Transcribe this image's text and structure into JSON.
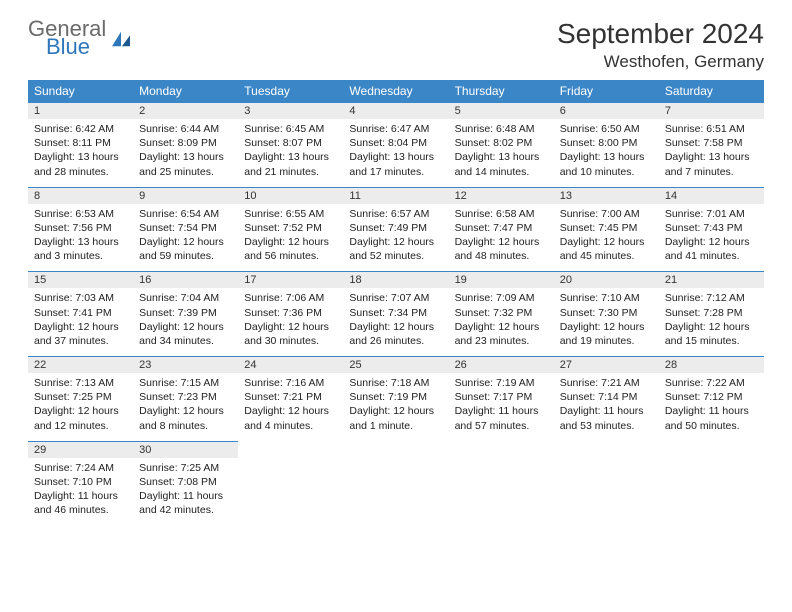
{
  "brand": {
    "part1": "General",
    "part2": "Blue"
  },
  "title": "September 2024",
  "location": "Westhofen, Germany",
  "colors": {
    "header_bg": "#3b86c7",
    "header_fg": "#ffffff",
    "daynum_bg": "#ececec",
    "row_border": "#3b86c7",
    "logo_gray": "#6a6a6a",
    "logo_blue": "#2f77bb"
  },
  "day_headers": [
    "Sunday",
    "Monday",
    "Tuesday",
    "Wednesday",
    "Thursday",
    "Friday",
    "Saturday"
  ],
  "weeks": [
    [
      {
        "n": "1",
        "sunrise": "Sunrise: 6:42 AM",
        "sunset": "Sunset: 8:11 PM",
        "day1": "Daylight: 13 hours",
        "day2": "and 28 minutes."
      },
      {
        "n": "2",
        "sunrise": "Sunrise: 6:44 AM",
        "sunset": "Sunset: 8:09 PM",
        "day1": "Daylight: 13 hours",
        "day2": "and 25 minutes."
      },
      {
        "n": "3",
        "sunrise": "Sunrise: 6:45 AM",
        "sunset": "Sunset: 8:07 PM",
        "day1": "Daylight: 13 hours",
        "day2": "and 21 minutes."
      },
      {
        "n": "4",
        "sunrise": "Sunrise: 6:47 AM",
        "sunset": "Sunset: 8:04 PM",
        "day1": "Daylight: 13 hours",
        "day2": "and 17 minutes."
      },
      {
        "n": "5",
        "sunrise": "Sunrise: 6:48 AM",
        "sunset": "Sunset: 8:02 PM",
        "day1": "Daylight: 13 hours",
        "day2": "and 14 minutes."
      },
      {
        "n": "6",
        "sunrise": "Sunrise: 6:50 AM",
        "sunset": "Sunset: 8:00 PM",
        "day1": "Daylight: 13 hours",
        "day2": "and 10 minutes."
      },
      {
        "n": "7",
        "sunrise": "Sunrise: 6:51 AM",
        "sunset": "Sunset: 7:58 PM",
        "day1": "Daylight: 13 hours",
        "day2": "and 7 minutes."
      }
    ],
    [
      {
        "n": "8",
        "sunrise": "Sunrise: 6:53 AM",
        "sunset": "Sunset: 7:56 PM",
        "day1": "Daylight: 13 hours",
        "day2": "and 3 minutes."
      },
      {
        "n": "9",
        "sunrise": "Sunrise: 6:54 AM",
        "sunset": "Sunset: 7:54 PM",
        "day1": "Daylight: 12 hours",
        "day2": "and 59 minutes."
      },
      {
        "n": "10",
        "sunrise": "Sunrise: 6:55 AM",
        "sunset": "Sunset: 7:52 PM",
        "day1": "Daylight: 12 hours",
        "day2": "and 56 minutes."
      },
      {
        "n": "11",
        "sunrise": "Sunrise: 6:57 AM",
        "sunset": "Sunset: 7:49 PM",
        "day1": "Daylight: 12 hours",
        "day2": "and 52 minutes."
      },
      {
        "n": "12",
        "sunrise": "Sunrise: 6:58 AM",
        "sunset": "Sunset: 7:47 PM",
        "day1": "Daylight: 12 hours",
        "day2": "and 48 minutes."
      },
      {
        "n": "13",
        "sunrise": "Sunrise: 7:00 AM",
        "sunset": "Sunset: 7:45 PM",
        "day1": "Daylight: 12 hours",
        "day2": "and 45 minutes."
      },
      {
        "n": "14",
        "sunrise": "Sunrise: 7:01 AM",
        "sunset": "Sunset: 7:43 PM",
        "day1": "Daylight: 12 hours",
        "day2": "and 41 minutes."
      }
    ],
    [
      {
        "n": "15",
        "sunrise": "Sunrise: 7:03 AM",
        "sunset": "Sunset: 7:41 PM",
        "day1": "Daylight: 12 hours",
        "day2": "and 37 minutes."
      },
      {
        "n": "16",
        "sunrise": "Sunrise: 7:04 AM",
        "sunset": "Sunset: 7:39 PM",
        "day1": "Daylight: 12 hours",
        "day2": "and 34 minutes."
      },
      {
        "n": "17",
        "sunrise": "Sunrise: 7:06 AM",
        "sunset": "Sunset: 7:36 PM",
        "day1": "Daylight: 12 hours",
        "day2": "and 30 minutes."
      },
      {
        "n": "18",
        "sunrise": "Sunrise: 7:07 AM",
        "sunset": "Sunset: 7:34 PM",
        "day1": "Daylight: 12 hours",
        "day2": "and 26 minutes."
      },
      {
        "n": "19",
        "sunrise": "Sunrise: 7:09 AM",
        "sunset": "Sunset: 7:32 PM",
        "day1": "Daylight: 12 hours",
        "day2": "and 23 minutes."
      },
      {
        "n": "20",
        "sunrise": "Sunrise: 7:10 AM",
        "sunset": "Sunset: 7:30 PM",
        "day1": "Daylight: 12 hours",
        "day2": "and 19 minutes."
      },
      {
        "n": "21",
        "sunrise": "Sunrise: 7:12 AM",
        "sunset": "Sunset: 7:28 PM",
        "day1": "Daylight: 12 hours",
        "day2": "and 15 minutes."
      }
    ],
    [
      {
        "n": "22",
        "sunrise": "Sunrise: 7:13 AM",
        "sunset": "Sunset: 7:25 PM",
        "day1": "Daylight: 12 hours",
        "day2": "and 12 minutes."
      },
      {
        "n": "23",
        "sunrise": "Sunrise: 7:15 AM",
        "sunset": "Sunset: 7:23 PM",
        "day1": "Daylight: 12 hours",
        "day2": "and 8 minutes."
      },
      {
        "n": "24",
        "sunrise": "Sunrise: 7:16 AM",
        "sunset": "Sunset: 7:21 PM",
        "day1": "Daylight: 12 hours",
        "day2": "and 4 minutes."
      },
      {
        "n": "25",
        "sunrise": "Sunrise: 7:18 AM",
        "sunset": "Sunset: 7:19 PM",
        "day1": "Daylight: 12 hours",
        "day2": "and 1 minute."
      },
      {
        "n": "26",
        "sunrise": "Sunrise: 7:19 AM",
        "sunset": "Sunset: 7:17 PM",
        "day1": "Daylight: 11 hours",
        "day2": "and 57 minutes."
      },
      {
        "n": "27",
        "sunrise": "Sunrise: 7:21 AM",
        "sunset": "Sunset: 7:14 PM",
        "day1": "Daylight: 11 hours",
        "day2": "and 53 minutes."
      },
      {
        "n": "28",
        "sunrise": "Sunrise: 7:22 AM",
        "sunset": "Sunset: 7:12 PM",
        "day1": "Daylight: 11 hours",
        "day2": "and 50 minutes."
      }
    ],
    [
      {
        "n": "29",
        "sunrise": "Sunrise: 7:24 AM",
        "sunset": "Sunset: 7:10 PM",
        "day1": "Daylight: 11 hours",
        "day2": "and 46 minutes."
      },
      {
        "n": "30",
        "sunrise": "Sunrise: 7:25 AM",
        "sunset": "Sunset: 7:08 PM",
        "day1": "Daylight: 11 hours",
        "day2": "and 42 minutes."
      },
      {
        "empty": true
      },
      {
        "empty": true
      },
      {
        "empty": true
      },
      {
        "empty": true
      },
      {
        "empty": true
      }
    ]
  ]
}
